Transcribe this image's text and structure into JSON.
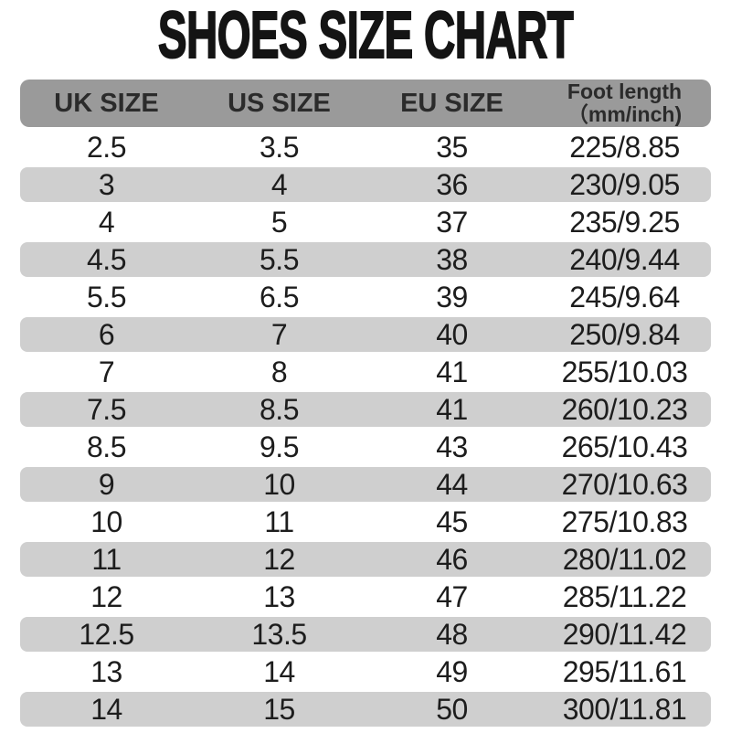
{
  "chart_data": {
    "type": "table",
    "title": "SHOES SIZE CHART",
    "columns": [
      {
        "label": "UK SIZE"
      },
      {
        "label": "US SIZE"
      },
      {
        "label": "EU SIZE"
      },
      {
        "label": "Foot length",
        "sublabel": "（mm/inch)"
      }
    ],
    "rows": [
      [
        "2.5",
        "3.5",
        "35",
        "225/8.85"
      ],
      [
        "3",
        "4",
        "36",
        "230/9.05"
      ],
      [
        "4",
        "5",
        "37",
        "235/9.25"
      ],
      [
        "4.5",
        "5.5",
        "38",
        "240/9.44"
      ],
      [
        "5.5",
        "6.5",
        "39",
        "245/9.64"
      ],
      [
        "6",
        "7",
        "40",
        "250/9.84"
      ],
      [
        "7",
        "8",
        "41",
        "255/10.03"
      ],
      [
        "7.5",
        "8.5",
        "41",
        "260/10.23"
      ],
      [
        "8.5",
        "9.5",
        "43",
        "265/10.43"
      ],
      [
        "9",
        "10",
        "44",
        "270/10.63"
      ],
      [
        "10",
        "11",
        "45",
        "275/10.83"
      ],
      [
        "11",
        "12",
        "46",
        "280/11.02"
      ],
      [
        "12",
        "13",
        "47",
        "285/11.22"
      ],
      [
        "12.5",
        "13.5",
        "48",
        "290/11.42"
      ],
      [
        "13",
        "14",
        "49",
        "295/11.61"
      ],
      [
        "14",
        "15",
        "50",
        "300/11.81"
      ]
    ]
  },
  "colors": {
    "header_bg": "#9a9a9a",
    "alt_row_bg": "#cfcfcf",
    "header_text": "#2b2b2b",
    "data_text": "#1d1d1d",
    "title_text": "#141414",
    "page_bg": "#ffffff"
  }
}
